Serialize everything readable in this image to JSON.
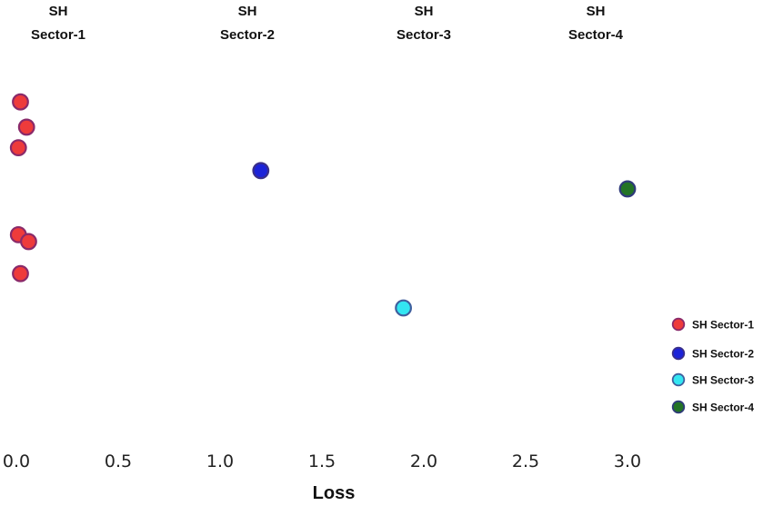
{
  "chart_data": {
    "type": "scatter",
    "title": "",
    "xlabel": "Loss",
    "ylabel": "",
    "xlim": [
      0.0,
      3.2
    ],
    "x_ticks": [
      "0.0",
      "0.5",
      "1.0",
      "1.5",
      "2.0",
      "2.5",
      "3.0"
    ],
    "grid": false,
    "legend_position": "right",
    "headers": [
      {
        "line1": "SH",
        "line2": "Sector-1",
        "x": 0.0
      },
      {
        "line1": "SH",
        "line2": "Sector-2",
        "x": 1.0
      },
      {
        "line1": "SH",
        "line2": "Sector-3",
        "x": 2.0
      },
      {
        "line1": "SH",
        "line2": "Sector-4",
        "x": 3.0
      }
    ],
    "series": [
      {
        "name": "SH Sector-1",
        "color": "#ee3b3b",
        "edge": "#8a2a6a",
        "points": [
          {
            "x": 0.02,
            "y": 9.0
          },
          {
            "x": 0.05,
            "y": 7.9
          },
          {
            "x": 0.01,
            "y": 7.0
          },
          {
            "x": 0.01,
            "y": 3.2
          },
          {
            "x": 0.06,
            "y": 2.9
          },
          {
            "x": 0.02,
            "y": 1.5
          }
        ]
      },
      {
        "name": "SH Sector-2",
        "color": "#1c23d8",
        "edge": "#3a2f8a",
        "points": [
          {
            "x": 1.2,
            "y": 6.0
          }
        ]
      },
      {
        "name": "SH Sector-3",
        "color": "#33e6f2",
        "edge": "#3f5f9e",
        "points": [
          {
            "x": 1.9,
            "y": 0.0
          }
        ]
      },
      {
        "name": "SH Sector-4",
        "color": "#237326",
        "edge": "#2f3a7a",
        "points": [
          {
            "x": 3.0,
            "y": 5.2
          }
        ]
      }
    ]
  }
}
